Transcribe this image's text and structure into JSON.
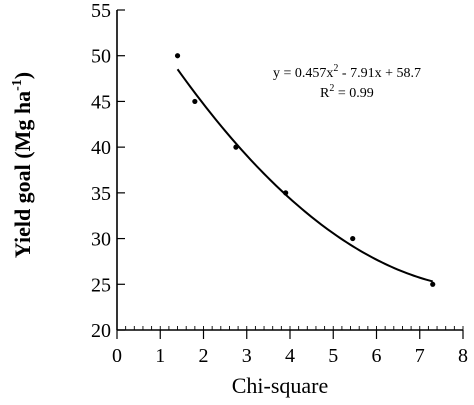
{
  "chart_data": {
    "type": "scatter",
    "title": "",
    "xlabel": "Chi-square",
    "ylabel": "Yield goal (Mg ha",
    "ylabel_sup": "-1",
    "ylabel_close": ")",
    "xlim": [
      0,
      8
    ],
    "ylim": [
      20,
      55
    ],
    "xticks": [
      0,
      1,
      2,
      3,
      4,
      5,
      6,
      7,
      8
    ],
    "yticks": [
      20,
      25,
      30,
      35,
      40,
      45,
      50,
      55
    ],
    "grid": false,
    "points": [
      {
        "x": 1.4,
        "y": 50
      },
      {
        "x": 1.8,
        "y": 45
      },
      {
        "x": 2.75,
        "y": 40
      },
      {
        "x": 3.9,
        "y": 35
      },
      {
        "x": 5.45,
        "y": 30
      },
      {
        "x": 7.3,
        "y": 25
      }
    ],
    "trendline": {
      "type": "quadratic",
      "coefficients": {
        "a": 0.457,
        "b": -7.91,
        "c": 58.7
      },
      "x_range": [
        1.4,
        7.3
      ]
    },
    "annotation": {
      "equation_prefix": "y = 0.457x",
      "equation_sup": "2",
      "equation_suffix": " - 7.91x + 58.7",
      "r2_prefix": "R",
      "r2_sup": "2",
      "r2_suffix": " = 0.99"
    }
  }
}
